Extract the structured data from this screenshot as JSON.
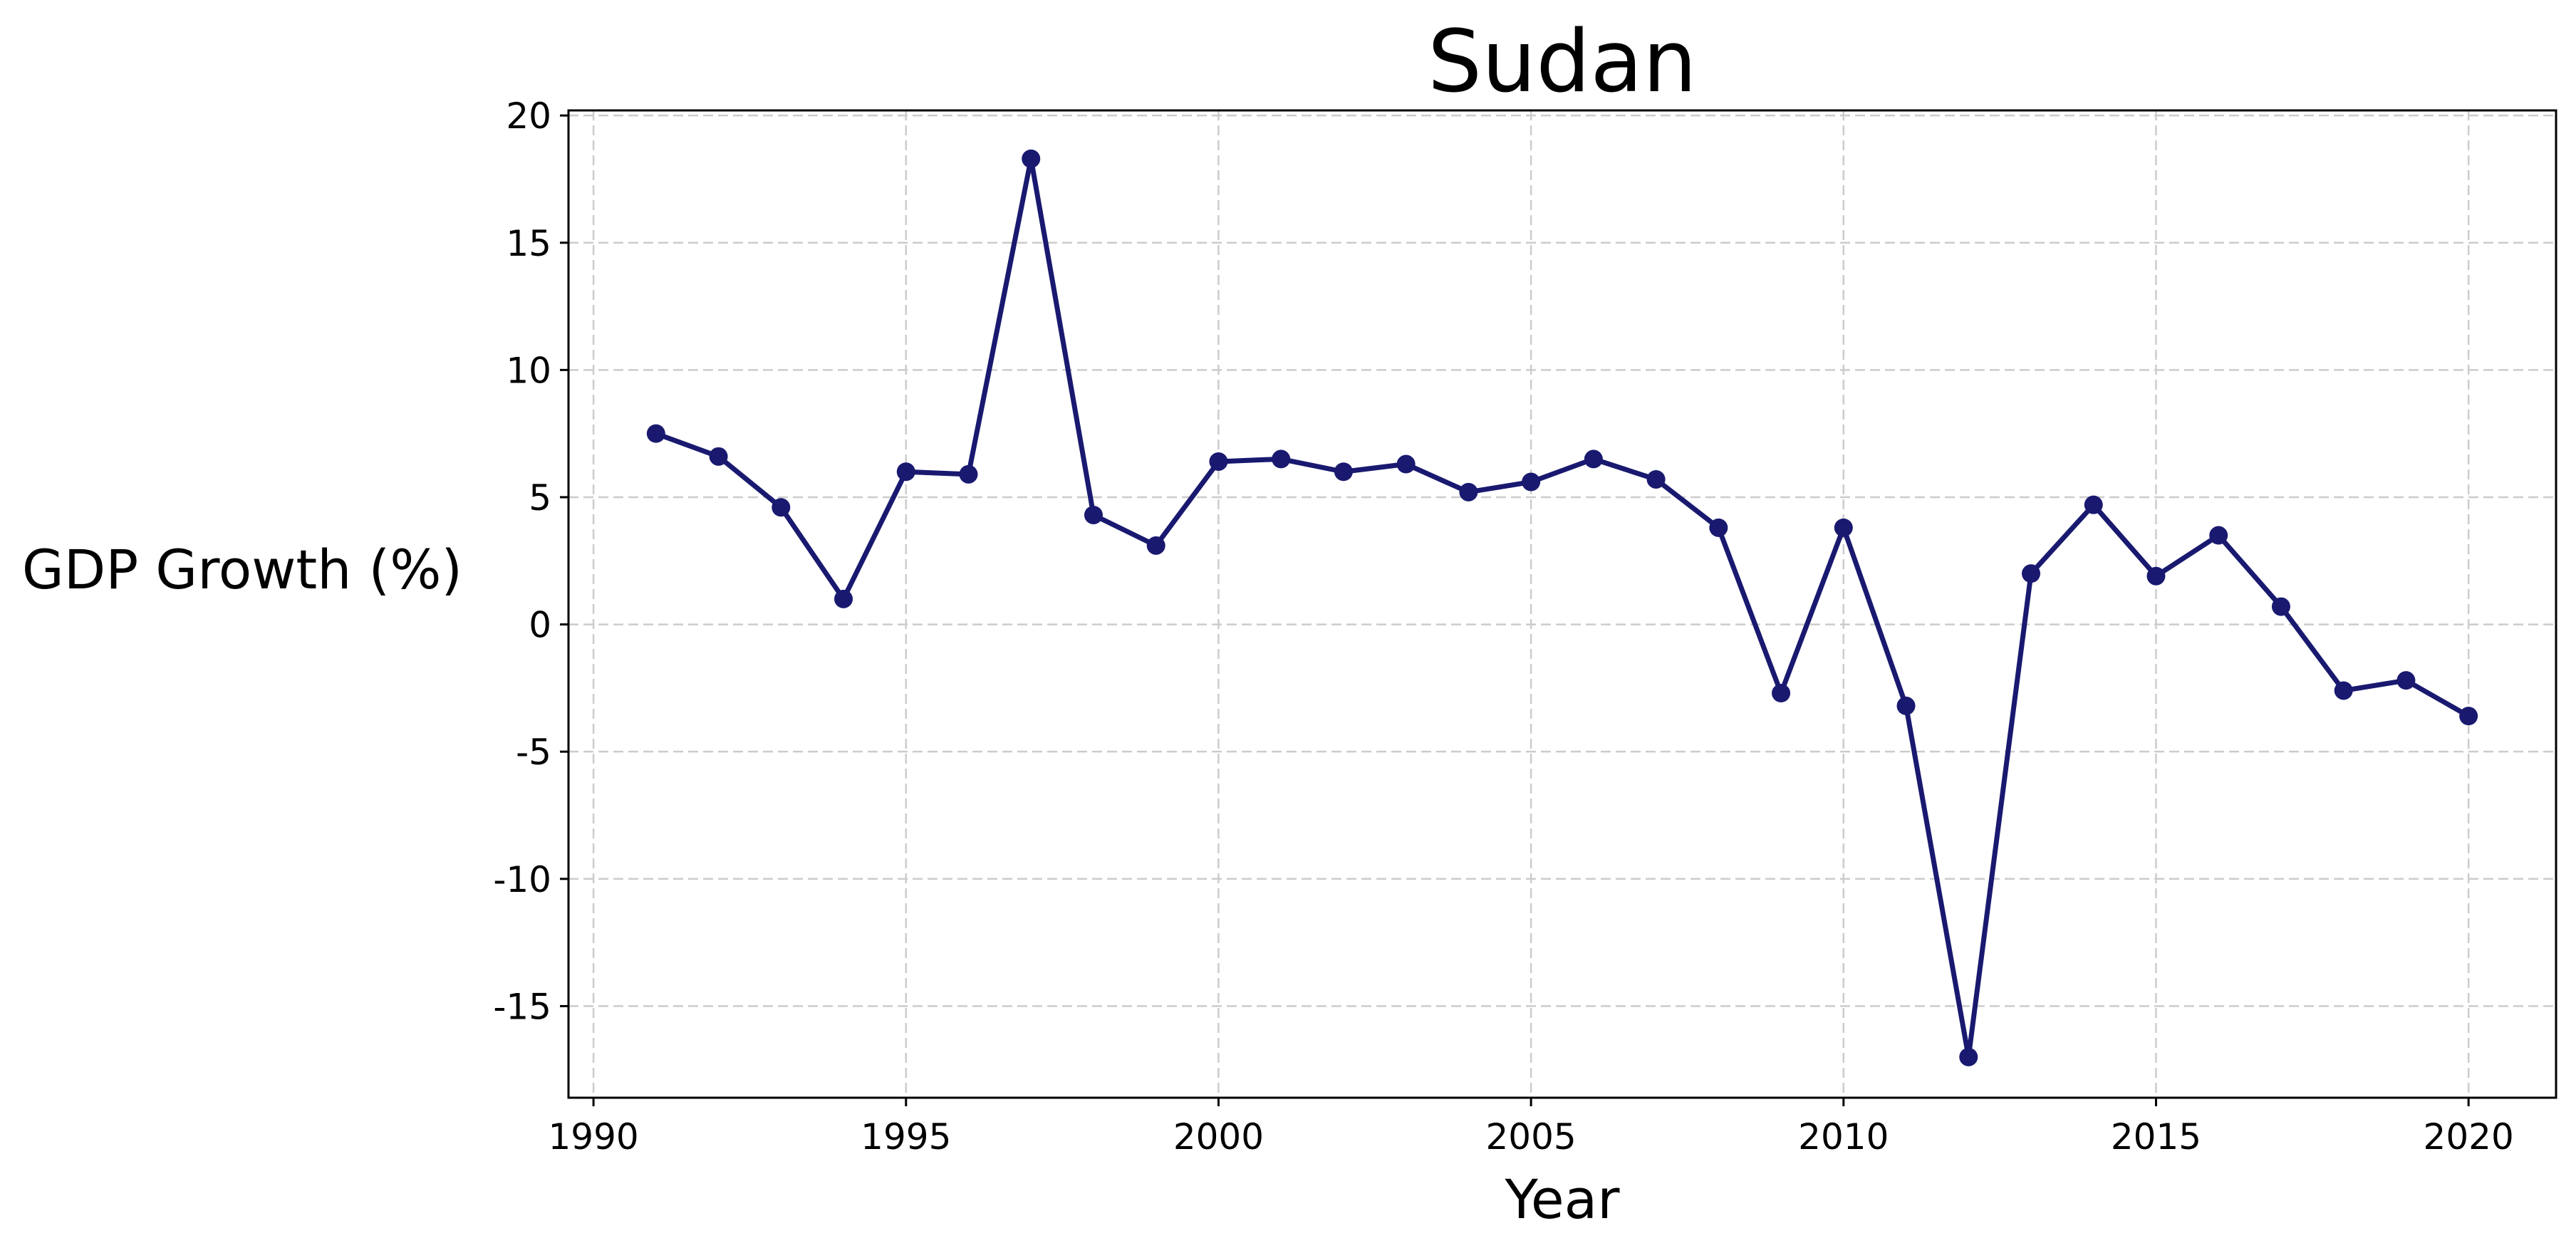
{
  "chart_data": {
    "type": "line",
    "title": "Sudan",
    "xlabel": "Year",
    "ylabel": "GDP Growth (%)",
    "xlim": [
      1989.6,
      2021.4
    ],
    "ylim": [
      -18.6,
      20.2
    ],
    "xticks": [
      1990,
      1995,
      2000,
      2005,
      2010,
      2015,
      2020
    ],
    "yticks": [
      -15,
      -10,
      -5,
      0,
      5,
      10,
      15,
      20
    ],
    "grid": true,
    "series": [
      {
        "color": "#191970",
        "x": [
          1991,
          1992,
          1993,
          1994,
          1995,
          1996,
          1997,
          1998,
          1999,
          2000,
          2001,
          2002,
          2003,
          2004,
          2005,
          2006,
          2007,
          2008,
          2009,
          2010,
          2011,
          2012,
          2013,
          2014,
          2015,
          2016,
          2017,
          2018,
          2019,
          2020
        ],
        "y": [
          7.5,
          6.6,
          4.6,
          1.0,
          6.0,
          5.9,
          18.3,
          4.3,
          3.1,
          6.4,
          6.5,
          6.0,
          6.3,
          5.2,
          5.6,
          6.5,
          5.7,
          3.8,
          -2.7,
          3.8,
          -3.2,
          -17.0,
          2.0,
          4.7,
          1.9,
          3.5,
          0.7,
          -2.6,
          -2.2,
          -3.6
        ]
      }
    ]
  }
}
